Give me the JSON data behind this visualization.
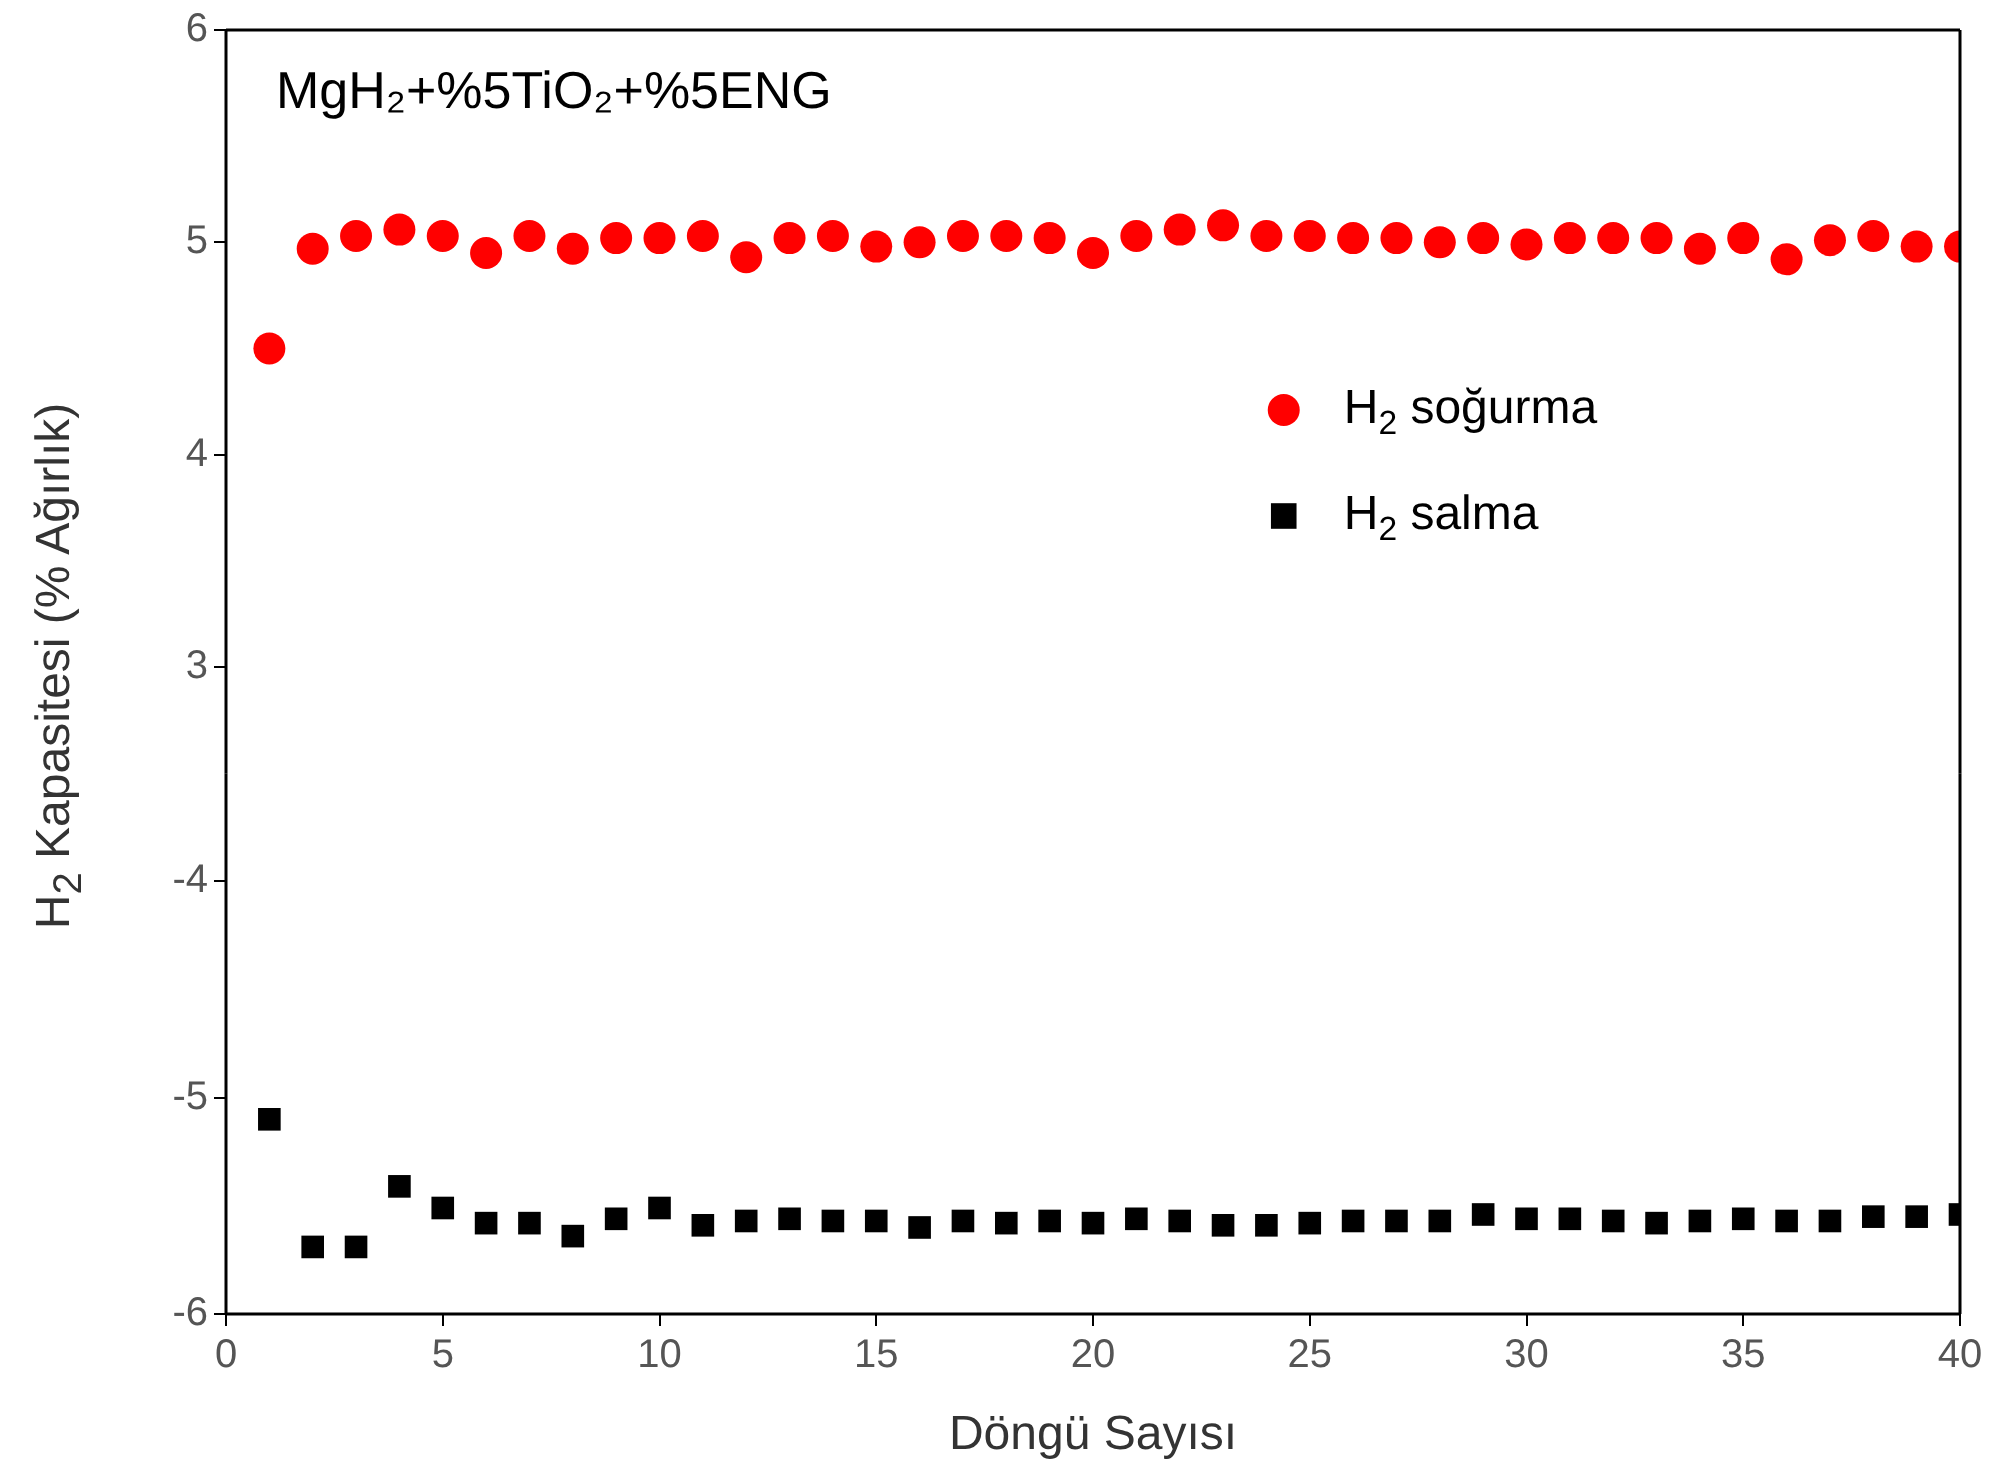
{
  "chart_data": [
    {
      "type": "scatter",
      "title": "MgH₂+%5TiO₂+%5ENG",
      "ylabel": "H$_{2}$ Kapasitesi (% Ağırlık)",
      "x": [
        1,
        2,
        3,
        4,
        5,
        6,
        7,
        8,
        9,
        10,
        11,
        12,
        13,
        14,
        15,
        16,
        17,
        18,
        19,
        20,
        21,
        22,
        23,
        24,
        25,
        26,
        27,
        28,
        29,
        30,
        31,
        32,
        33,
        34,
        35,
        36,
        37,
        38,
        39,
        40
      ],
      "series": [
        {
          "name": "H$_{2}$ soğurma",
          "color": "#ff0000",
          "marker": "circle",
          "values": [
            4.5,
            4.97,
            5.03,
            5.06,
            5.03,
            4.95,
            5.03,
            4.97,
            5.02,
            5.02,
            5.03,
            4.93,
            5.02,
            5.03,
            4.98,
            5.0,
            5.03,
            5.03,
            5.02,
            4.95,
            5.03,
            5.06,
            5.08,
            5.03,
            5.03,
            5.02,
            5.02,
            5.0,
            5.02,
            4.99,
            5.02,
            5.02,
            5.02,
            4.97,
            5.02,
            4.92,
            5.01,
            5.03,
            4.98,
            4.98
          ]
        }
      ],
      "xlim": [
        0,
        40
      ],
      "ylim": [
        2.5,
        6
      ],
      "yticks": [
        3,
        4,
        5,
        6
      ],
      "tick_labels": "y",
      "grid": false,
      "legend": "right"
    },
    {
      "type": "scatter",
      "xlabel": "Döngü Sayısı",
      "x": [
        1,
        2,
        3,
        4,
        5,
        6,
        7,
        8,
        9,
        10,
        11,
        12,
        13,
        14,
        15,
        16,
        17,
        18,
        19,
        20,
        21,
        22,
        23,
        24,
        25,
        26,
        27,
        28,
        29,
        30,
        31,
        32,
        33,
        34,
        35,
        36,
        37,
        38,
        39,
        40
      ],
      "series": [
        {
          "name": "H$_{2}$ salma",
          "color": "#000000",
          "marker": "square",
          "values": [
            -5.1,
            -5.69,
            -5.69,
            -5.41,
            -5.51,
            -5.58,
            -5.58,
            -5.64,
            -5.56,
            -5.51,
            -5.59,
            -5.57,
            -5.56,
            -5.57,
            -5.57,
            -5.6,
            -5.57,
            -5.58,
            -5.57,
            -5.58,
            -5.56,
            -5.57,
            -5.59,
            -5.59,
            -5.58,
            -5.57,
            -5.57,
            -5.57,
            -5.54,
            -5.56,
            -5.56,
            -5.57,
            -5.58,
            -5.57,
            -5.56,
            -5.57,
            -5.57,
            -5.55,
            -5.55,
            -5.54
          ]
        }
      ],
      "xlim": [
        0,
        40
      ],
      "xticks": [
        0,
        5,
        10,
        15,
        20,
        25,
        30,
        35,
        40
      ],
      "ylim": [
        -6,
        -3.5
      ],
      "yticks": [
        -6,
        -5,
        -4
      ],
      "grid": false,
      "legend": "top right"
    }
  ]
}
